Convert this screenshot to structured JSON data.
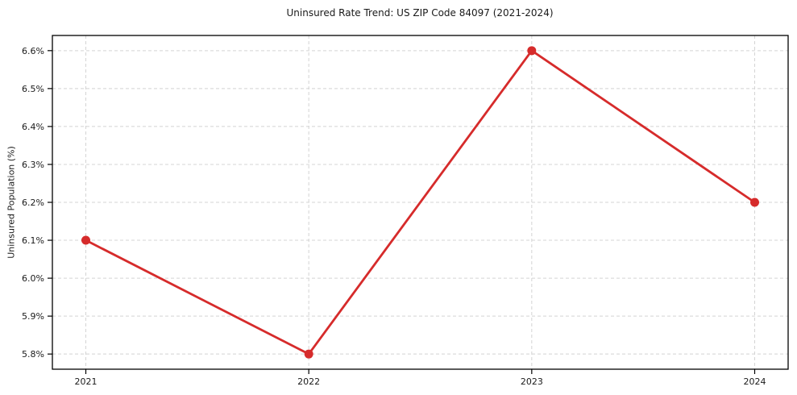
{
  "chart_data": {
    "type": "line",
    "title": "Uninsured Rate Trend: US ZIP Code 84097 (2021-2024)",
    "xlabel": "",
    "ylabel": "Uninsured Population (%)",
    "categories": [
      "2021",
      "2022",
      "2023",
      "2024"
    ],
    "x_numeric": [
      2021,
      2022,
      2023,
      2024
    ],
    "series": [
      {
        "values": [
          6.1,
          5.8,
          6.6,
          6.2
        ],
        "color": "#d62b2b",
        "marker": "circle"
      }
    ],
    "xlim": [
      2020.85,
      2024.15
    ],
    "ylim": [
      5.76,
      6.64
    ],
    "yticks": [
      5.8,
      5.9,
      6.0,
      6.1,
      6.2,
      6.3,
      6.4,
      6.5,
      6.6
    ],
    "ytick_labels": [
      "5.8%",
      "5.9%",
      "6.0%",
      "6.1%",
      "6.2%",
      "6.3%",
      "6.4%",
      "6.5%",
      "6.6%"
    ],
    "grid": true,
    "grid_style": "dashed",
    "grid_color": "#d4d4d4",
    "spine_color": "#000000",
    "tick_color": "#000000",
    "background": "#ffffff",
    "legend": "none"
  }
}
